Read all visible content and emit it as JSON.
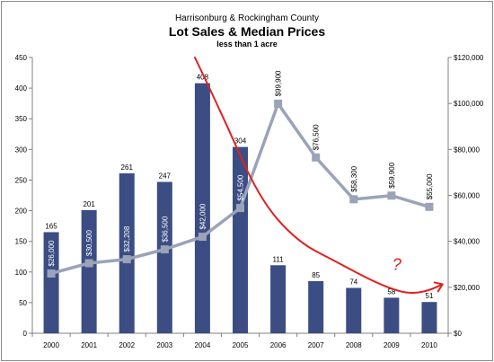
{
  "chart_data": {
    "type": "bar",
    "title": "Harrisonburg & Rockingham County",
    "subtitle": "Lot Sales & Median Prices",
    "note": "less than 1 acre",
    "categories": [
      "2000",
      "2001",
      "2002",
      "2003",
      "2004",
      "2005",
      "2006",
      "2007",
      "2008",
      "2009",
      "2010"
    ],
    "series": [
      {
        "type": "bar",
        "axis": "left",
        "values": [
          165,
          201,
          261,
          247,
          408,
          304,
          111,
          85,
          74,
          58,
          51
        ],
        "labels": [
          "165",
          "201",
          "261",
          "247",
          "408",
          "304",
          "111",
          "85",
          "74",
          "58",
          "51"
        ],
        "color": "#3b4d83"
      },
      {
        "type": "line",
        "axis": "right",
        "values": [
          26000,
          30500,
          32208,
          36500,
          42000,
          54500,
          99900,
          76500,
          58300,
          59900,
          55000
        ],
        "labels": [
          "$26,000",
          "$30,500",
          "$32,208",
          "$36,500",
          "$42,000",
          "$54,500",
          "$99,900",
          "$76,500",
          "$58,300",
          "$59,900",
          "$55,000"
        ],
        "color": "#9aa3b8"
      }
    ],
    "ylim_left": [
      0,
      450
    ],
    "yticks_left": [
      "0",
      "50",
      "100",
      "150",
      "200",
      "250",
      "300",
      "350",
      "400",
      "450"
    ],
    "ylim_right": [
      0,
      120000
    ],
    "yticks_right": [
      "$0",
      "$20,000",
      "$40,000",
      "$60,000",
      "$80,000",
      "$100,000",
      "$120,000"
    ],
    "grid": false,
    "annotation": {
      "type": "hand-drawn trend arrow",
      "color": "#e02020",
      "text": "?",
      "path_values": [
        [
          3.8,
          450
        ],
        [
          4.5,
          360
        ],
        [
          5.5,
          220
        ],
        [
          6.5,
          150
        ],
        [
          7.5,
          118
        ],
        [
          8.5,
          85
        ],
        [
          9.2,
          68
        ],
        [
          9.6,
          65
        ],
        [
          10.0,
          70
        ],
        [
          10.35,
          80
        ]
      ]
    }
  }
}
